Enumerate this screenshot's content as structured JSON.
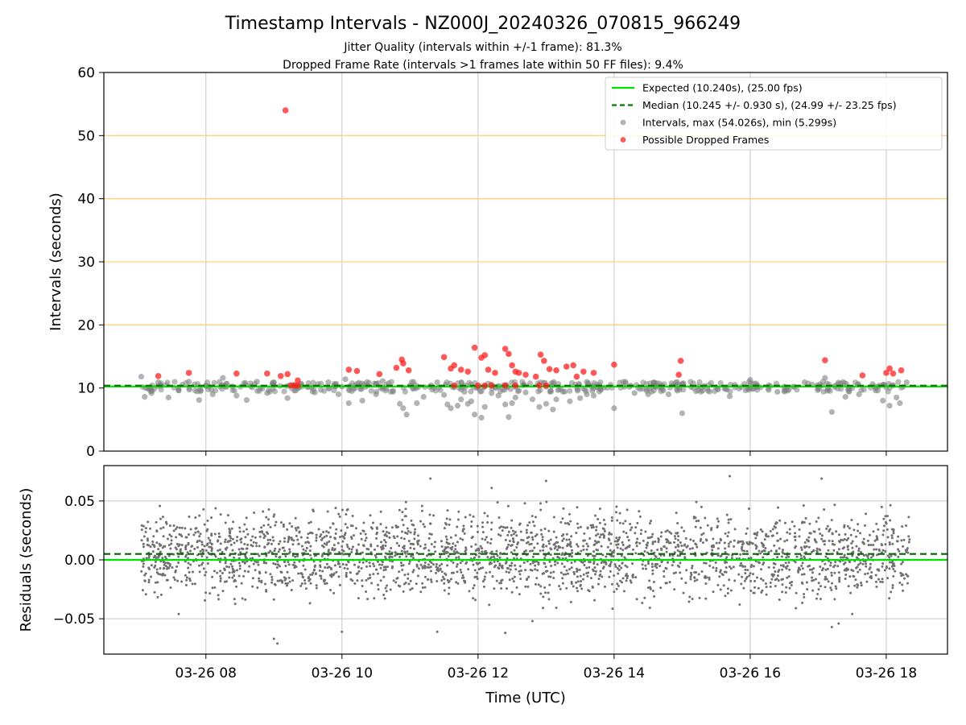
{
  "title": "Timestamp Intervals - NZ000J_20240326_070815_966249",
  "subtitle_lines": [
    "Jitter Quality (intervals within +/-1 frame): 81.3%",
    "Dropped Frame Rate (intervals >1 frames late within 50 FF files): 9.4%"
  ],
  "colors": {
    "expected": "#00e000",
    "median": "#007a00",
    "intervals": "#808080",
    "dropped": "#ff2020",
    "threshold_lines": "#ffd27a",
    "grid": "#c8c8c8"
  },
  "chart_data": [
    {
      "type": "scatter",
      "panel": "top",
      "ylabel": "Intervals (seconds)",
      "ylim": [
        0,
        60
      ],
      "yticks": [
        "0",
        "10",
        "20",
        "30",
        "40",
        "50",
        "60"
      ],
      "xlim": [
        "03-26 06:30",
        "18:55"
      ],
      "xticks": [
        "03-26 08",
        "03-26 10",
        "03-26 12",
        "03-26 14",
        "03-26 16",
        "03-26 18"
      ],
      "grid": true,
      "threshold_lines_y": [
        20,
        30,
        40,
        50
      ],
      "expected_line_y": 10.24,
      "median_line_y": 10.245,
      "legend_position": "upper right",
      "legend": [
        {
          "kind": "line-solid",
          "label": "Expected (10.240s), (25.00 fps)"
        },
        {
          "kind": "line-dashed",
          "label": "Median (10.245 +/- 0.930 s), (24.99 +/- 23.25 fps)"
        },
        {
          "kind": "dot-gray",
          "label": "Intervals, max (54.026s), min (5.299s)"
        },
        {
          "kind": "dot-red",
          "label": "Possible Dropped Frames"
        }
      ],
      "series": [
        {
          "label_ref": "intervals",
          "points": [
            [
              7.05,
              11.8
            ],
            [
              7.1,
              8.6
            ],
            [
              7.2,
              9.2
            ],
            [
              7.3,
              10.9
            ],
            [
              7.45,
              8.5
            ],
            [
              7.6,
              9.6
            ],
            [
              7.75,
              11.0
            ],
            [
              7.9,
              8.1
            ],
            [
              8.1,
              9.0
            ],
            [
              8.25,
              11.6
            ],
            [
              8.45,
              8.8
            ],
            [
              8.6,
              8.1
            ],
            [
              8.75,
              11.0
            ],
            [
              8.9,
              9.2
            ],
            [
              9.0,
              10.9
            ],
            [
              9.2,
              8.4
            ],
            [
              9.4,
              10.6
            ],
            [
              9.6,
              9.3
            ],
            [
              9.8,
              10.9
            ],
            [
              9.95,
              9.0
            ],
            [
              10.05,
              11.4
            ],
            [
              10.1,
              7.6
            ],
            [
              10.3,
              8.0
            ],
            [
              10.5,
              9.0
            ],
            [
              10.6,
              11.1
            ],
            [
              10.75,
              9.4
            ],
            [
              10.85,
              7.5
            ],
            [
              10.9,
              6.8
            ],
            [
              10.95,
              5.8
            ],
            [
              11.1,
              7.6
            ],
            [
              11.2,
              8.6
            ],
            [
              11.4,
              10.9
            ],
            [
              11.5,
              8.9
            ],
            [
              11.55,
              7.4
            ],
            [
              11.6,
              6.8
            ],
            [
              11.7,
              7.2
            ],
            [
              11.75,
              8.2
            ],
            [
              11.8,
              9.4
            ],
            [
              11.85,
              7.5
            ],
            [
              11.9,
              7.9
            ],
            [
              11.95,
              5.8
            ],
            [
              12.05,
              5.3
            ],
            [
              12.1,
              7.0
            ],
            [
              12.2,
              9.2
            ],
            [
              12.3,
              8.8
            ],
            [
              12.4,
              7.4
            ],
            [
              12.45,
              5.4
            ],
            [
              12.5,
              7.6
            ],
            [
              12.55,
              8.5
            ],
            [
              12.6,
              9.6
            ],
            [
              12.7,
              9.3
            ],
            [
              12.8,
              8.2
            ],
            [
              12.9,
              7.0
            ],
            [
              13.0,
              7.5
            ],
            [
              13.1,
              6.6
            ],
            [
              13.15,
              8.2
            ],
            [
              13.25,
              9.4
            ],
            [
              13.35,
              7.9
            ],
            [
              13.5,
              8.4
            ],
            [
              13.6,
              9.0
            ],
            [
              13.7,
              8.8
            ],
            [
              14.0,
              6.8
            ],
            [
              14.3,
              9.2
            ],
            [
              14.5,
              9.0
            ],
            [
              14.8,
              9.0
            ],
            [
              15.0,
              6.0
            ],
            [
              15.3,
              9.6
            ],
            [
              15.7,
              8.7
            ],
            [
              16.0,
              11.3
            ],
            [
              16.4,
              9.4
            ],
            [
              16.8,
              10.9
            ],
            [
              17.1,
              11.6
            ],
            [
              17.2,
              6.2
            ],
            [
              17.4,
              8.6
            ],
            [
              17.6,
              9.0
            ],
            [
              17.8,
              10.6
            ],
            [
              17.95,
              8.0
            ],
            [
              18.05,
              7.2
            ],
            [
              18.15,
              8.5
            ],
            [
              18.2,
              7.6
            ],
            [
              18.3,
              10.9
            ],
            [
              8.0,
              10.4
            ],
            [
              8.8,
              10.0
            ],
            [
              9.3,
              9.6
            ],
            [
              10.0,
              10.2
            ],
            [
              11.0,
              10.4
            ],
            [
              12.0,
              10.2
            ],
            [
              13.8,
              10.0
            ],
            [
              14.6,
              10.3
            ],
            [
              15.5,
              10.1
            ],
            [
              16.5,
              10.2
            ],
            [
              17.5,
              10.0
            ]
          ]
        },
        {
          "label_ref": "dropped",
          "points": [
            [
              9.17,
              54.0
            ],
            [
              7.3,
              11.9
            ],
            [
              7.75,
              12.4
            ],
            [
              8.45,
              12.3
            ],
            [
              8.9,
              12.3
            ],
            [
              9.1,
              11.9
            ],
            [
              9.2,
              12.2
            ],
            [
              9.35,
              11.2
            ],
            [
              10.1,
              12.9
            ],
            [
              10.22,
              12.7
            ],
            [
              10.55,
              12.2
            ],
            [
              10.8,
              13.2
            ],
            [
              10.88,
              14.5
            ],
            [
              10.9,
              13.9
            ],
            [
              10.98,
              12.8
            ],
            [
              11.5,
              14.9
            ],
            [
              11.6,
              13.1
            ],
            [
              11.65,
              13.6
            ],
            [
              11.75,
              12.9
            ],
            [
              11.85,
              12.6
            ],
            [
              11.95,
              16.4
            ],
            [
              12.05,
              14.8
            ],
            [
              12.1,
              15.2
            ],
            [
              12.15,
              12.9
            ],
            [
              12.25,
              12.4
            ],
            [
              12.4,
              16.2
            ],
            [
              12.45,
              15.4
            ],
            [
              12.5,
              13.6
            ],
            [
              12.55,
              12.6
            ],
            [
              12.6,
              12.4
            ],
            [
              12.7,
              12.1
            ],
            [
              12.85,
              11.8
            ],
            [
              12.92,
              15.3
            ],
            [
              12.97,
              14.3
            ],
            [
              13.05,
              13.0
            ],
            [
              13.15,
              12.8
            ],
            [
              13.3,
              13.4
            ],
            [
              13.4,
              13.6
            ],
            [
              13.45,
              11.8
            ],
            [
              13.55,
              12.6
            ],
            [
              13.7,
              12.4
            ],
            [
              14.0,
              13.7
            ],
            [
              14.95,
              12.1
            ],
            [
              14.98,
              14.3
            ],
            [
              17.1,
              14.4
            ],
            [
              17.65,
              12.0
            ],
            [
              18.0,
              12.4
            ],
            [
              18.05,
              13.1
            ],
            [
              18.1,
              12.3
            ],
            [
              18.22,
              12.8
            ],
            [
              9.25,
              10.4
            ],
            [
              9.3,
              10.4
            ],
            [
              9.35,
              10.4
            ],
            [
              11.65,
              10.4
            ],
            [
              12.0,
              10.4
            ],
            [
              12.1,
              10.4
            ],
            [
              12.2,
              10.4
            ],
            [
              12.4,
              10.4
            ],
            [
              12.55,
              10.4
            ],
            [
              12.9,
              10.4
            ],
            [
              13.0,
              10.4
            ]
          ]
        }
      ]
    },
    {
      "type": "scatter",
      "panel": "bottom",
      "ylabel": "Residuals (seconds)",
      "xlabel": "Time (UTC)",
      "ylim": [
        -0.08,
        0.08
      ],
      "yticks": [
        "0.05",
        "0.00",
        "−0.05"
      ],
      "xticks": [
        "03-26 08",
        "03-26 10",
        "03-26 12",
        "03-26 14",
        "03-26 16",
        "03-26 18"
      ],
      "grid": true,
      "expected_line_y": 0.0,
      "median_line_y": 0.005,
      "residual_x_range": [
        7.05,
        18.35
      ],
      "residual_spread": 0.052,
      "residual_count": 2600,
      "residual_outliers": [
        [
          9.0,
          -0.067
        ],
        [
          9.05,
          -0.071
        ],
        [
          10.0,
          -0.061
        ],
        [
          11.4,
          -0.061
        ],
        [
          12.4,
          -0.062
        ],
        [
          12.8,
          -0.052
        ],
        [
          17.2,
          -0.057
        ],
        [
          17.3,
          -0.054
        ],
        [
          17.5,
          -0.046
        ],
        [
          11.3,
          0.069
        ],
        [
          15.7,
          0.071
        ],
        [
          17.05,
          0.069
        ],
        [
          12.2,
          0.061
        ],
        [
          7.6,
          -0.046
        ],
        [
          13.0,
          0.067
        ]
      ]
    }
  ]
}
